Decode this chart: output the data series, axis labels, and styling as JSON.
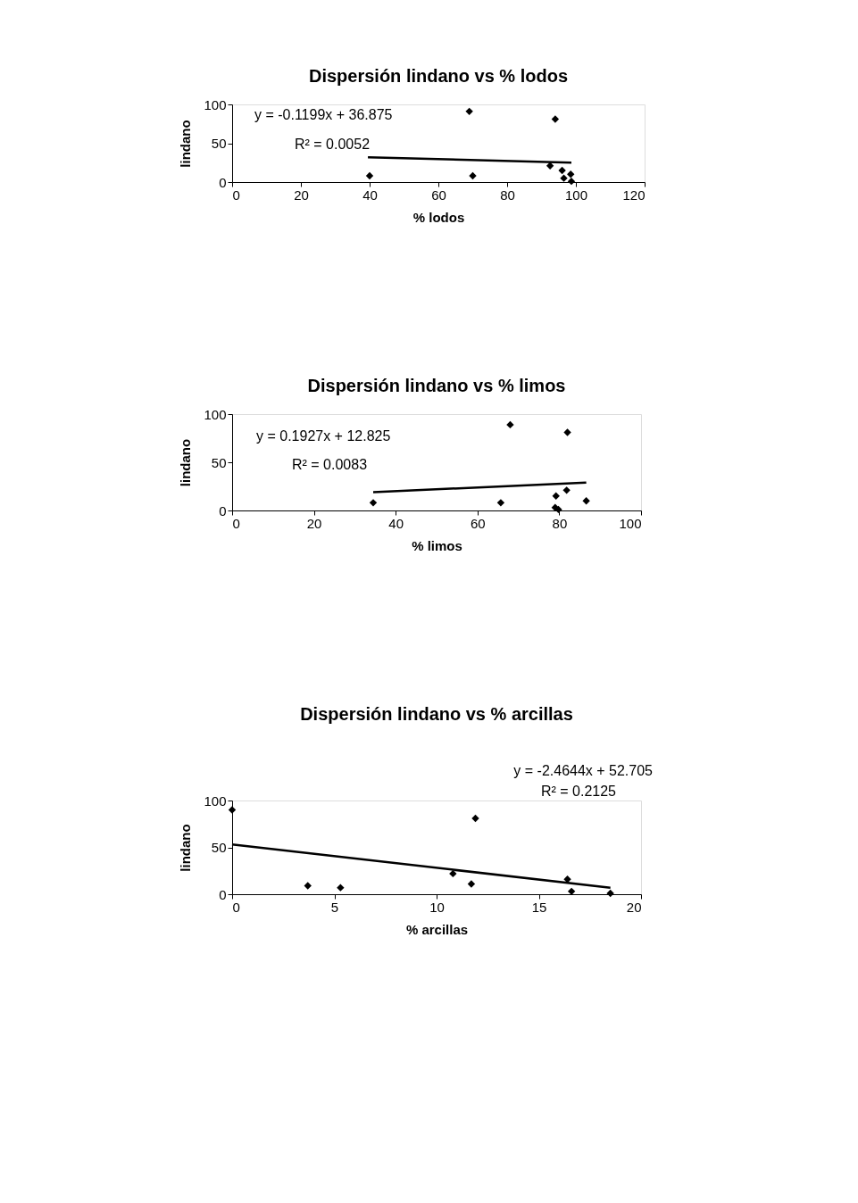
{
  "chart_data": [
    {
      "type": "scatter",
      "title": "Dispersión lindano vs % lodos",
      "xlabel": "% lodos",
      "ylabel": "lindano",
      "xlim": [
        0,
        120
      ],
      "xticks": [
        0,
        20,
        40,
        60,
        80,
        100,
        120
      ],
      "ylim": [
        0,
        100
      ],
      "yticks": [
        0,
        50,
        100
      ],
      "grid": false,
      "series": [
        {
          "color": "#000000",
          "marker": "diamond",
          "x": [
            69,
            94,
            40,
            70,
            92.5,
            96,
            96.5,
            98.5,
            98.7
          ],
          "values": [
            91,
            81,
            8,
            8,
            21,
            15,
            5,
            10,
            1
          ]
        },
        {
          "type": "line",
          "marker": "none",
          "color": "#000000",
          "x": [
            39.5,
            98.7
          ],
          "values": [
            32,
            25
          ]
        }
      ],
      "annotations": [
        "y = -0.1199x + 36.875",
        "R² = 0.0052"
      ]
    },
    {
      "type": "scatter",
      "title": "Dispersión lindano vs % limos",
      "xlabel": "% limos",
      "ylabel": "lindano",
      "xlim": [
        0,
        100
      ],
      "xticks": [
        0,
        20,
        40,
        60,
        80,
        100
      ],
      "ylim": [
        0,
        100
      ],
      "yticks": [
        0,
        50,
        100
      ],
      "grid": false,
      "series": [
        {
          "color": "#000000",
          "marker": "diamond",
          "x": [
            68,
            82,
            34.5,
            65.7,
            79.2,
            81.8,
            86.6,
            79,
            79.8
          ],
          "values": [
            89,
            81,
            8,
            8,
            15,
            21,
            10,
            3,
            1
          ]
        },
        {
          "type": "line",
          "marker": "none",
          "color": "#000000",
          "x": [
            34.5,
            86.6
          ],
          "values": [
            19,
            29
          ]
        }
      ],
      "annotations": [
        "y = 0.1927x + 12.825",
        "R² = 0.0083"
      ]
    },
    {
      "type": "scatter",
      "title": "Dispersión lindano vs % arcillas",
      "xlabel": "% arcillas",
      "ylabel": "lindano",
      "xlim": [
        0,
        20
      ],
      "xticks": [
        0,
        5,
        10,
        15,
        20
      ],
      "ylim": [
        0,
        100
      ],
      "yticks": [
        0,
        50,
        100
      ],
      "grid": false,
      "series": [
        {
          "color": "#000000",
          "marker": "diamond",
          "x": [
            0,
            11.9,
            3.7,
            5.3,
            10.8,
            11.7,
            16.4,
            16.6,
            18.5
          ],
          "values": [
            90,
            81,
            9,
            7,
            22,
            11,
            16,
            3,
            1
          ]
        },
        {
          "type": "line",
          "marker": "none",
          "color": "#000000",
          "x": [
            0,
            18.5
          ],
          "values": [
            53,
            7
          ]
        }
      ],
      "annotations": [
        "y = -2.4644x + 52.705",
        "R² = 0.2125"
      ]
    }
  ]
}
